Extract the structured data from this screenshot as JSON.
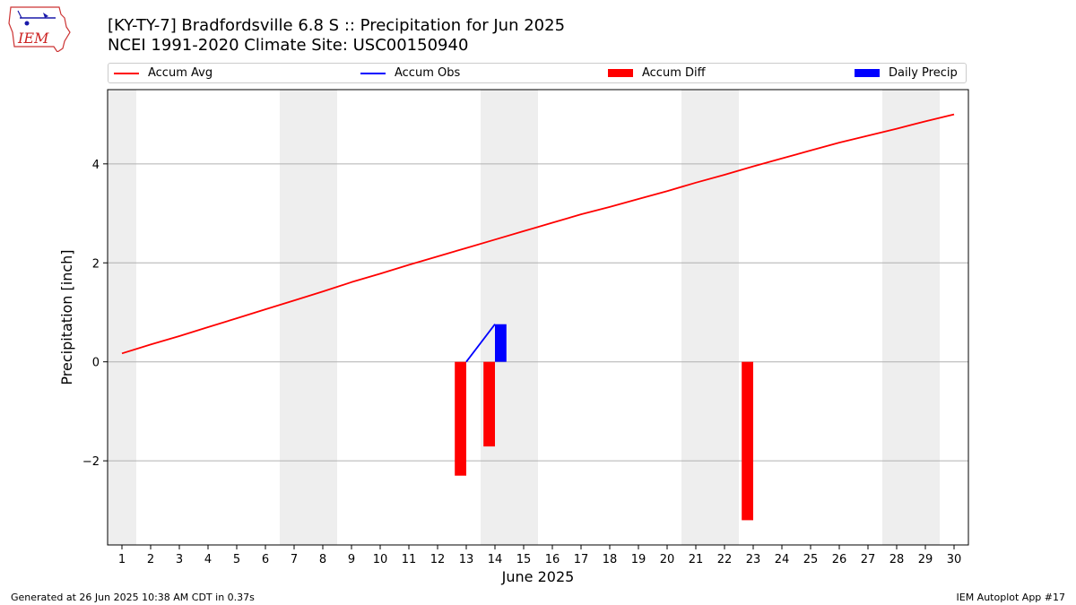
{
  "header": {
    "logo_text": "IEM",
    "title_line1": "[KY-TY-7] Bradfordsville 6.8 S :: Precipitation for Jun 2025",
    "title_line2": "NCEI 1991-2020 Climate Site: USC00150940"
  },
  "legend": [
    {
      "label": "Accum Avg",
      "color": "#ff0000",
      "kind": "line"
    },
    {
      "label": "Accum Obs",
      "color": "#0000ff",
      "kind": "line"
    },
    {
      "label": "Accum Diff",
      "color": "#ff0000",
      "kind": "box"
    },
    {
      "label": "Daily Precip",
      "color": "#0000ff",
      "kind": "box"
    }
  ],
  "footer": {
    "left": "Generated at 26 Jun 2025 10:38 AM CDT in 0.37s",
    "right": "IEM Autoplot App #17"
  },
  "chart_data": {
    "type": "bar",
    "xlabel": "June 2025",
    "ylabel": "Precipitation [inch]",
    "xlim": [
      0.5,
      30.5
    ],
    "ylim": [
      -3.7,
      5.5
    ],
    "x_ticks": [
      1,
      2,
      3,
      4,
      5,
      6,
      7,
      8,
      9,
      10,
      11,
      12,
      13,
      14,
      15,
      16,
      17,
      18,
      19,
      20,
      21,
      22,
      23,
      24,
      25,
      26,
      27,
      28,
      29,
      30
    ],
    "y_ticks": [
      -2,
      0,
      2,
      4
    ],
    "y_tick_labels": [
      "−2",
      "0",
      "2",
      "4"
    ],
    "grid": "horizontal",
    "weekend_shading": [
      [
        0.5,
        1.5
      ],
      [
        6.5,
        8.5
      ],
      [
        13.5,
        15.5
      ],
      [
        20.5,
        22.5
      ],
      [
        27.5,
        29.5
      ]
    ],
    "shading_color": "#eeeeee",
    "series": [
      {
        "name": "Accum Avg",
        "type": "line",
        "color": "#ff0000",
        "x": [
          1,
          2,
          3,
          4,
          5,
          6,
          7,
          8,
          9,
          10,
          11,
          12,
          13,
          14,
          15,
          16,
          17,
          18,
          19,
          20,
          21,
          22,
          23,
          24,
          25,
          26,
          27,
          28,
          29,
          30
        ],
        "y": [
          0.17,
          0.35,
          0.52,
          0.7,
          0.88,
          1.06,
          1.24,
          1.42,
          1.61,
          1.78,
          1.96,
          2.13,
          2.3,
          2.47,
          2.64,
          2.81,
          2.98,
          3.13,
          3.29,
          3.45,
          3.62,
          3.78,
          3.95,
          4.11,
          4.27,
          4.43,
          4.57,
          4.71,
          4.86,
          5.0
        ]
      },
      {
        "name": "Accum Obs",
        "type": "line",
        "color": "#0000ff",
        "x": [
          13,
          14
        ],
        "y": [
          0.0,
          0.76
        ]
      },
      {
        "name": "Accum Diff",
        "type": "bar",
        "color": "#ff0000",
        "x": [
          13,
          14,
          23
        ],
        "y": [
          -2.3,
          -1.71,
          -3.2
        ]
      },
      {
        "name": "Daily Precip",
        "type": "bar",
        "color": "#0000ff",
        "x": [
          14
        ],
        "y": [
          0.76
        ]
      }
    ]
  }
}
